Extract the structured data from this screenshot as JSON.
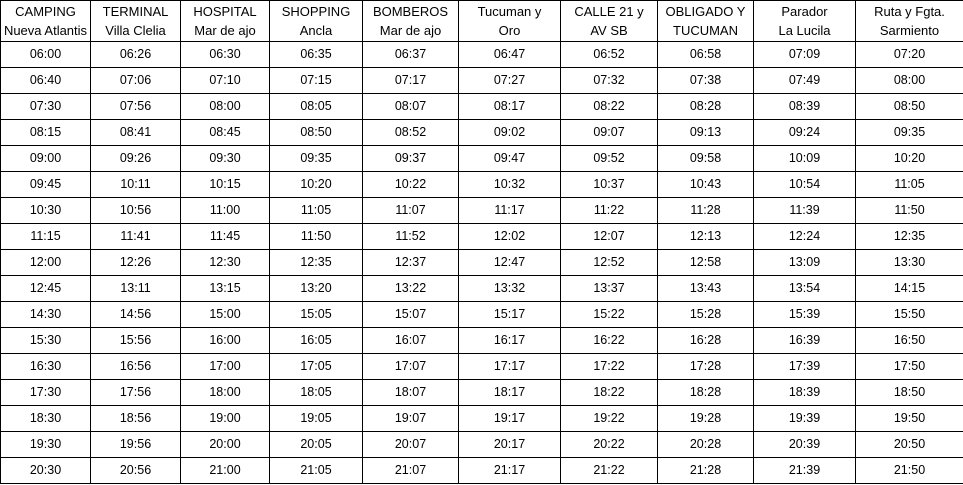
{
  "headers": [
    {
      "line1": "CAMPING",
      "line2": "Nueva Atlantis"
    },
    {
      "line1": "TERMINAL",
      "line2": "Villa Clelia"
    },
    {
      "line1": "HOSPITAL",
      "line2": "Mar de ajo"
    },
    {
      "line1": "SHOPPING",
      "line2": "Ancla"
    },
    {
      "line1": "BOMBEROS",
      "line2": "Mar de ajo"
    },
    {
      "line1": "Tucuman y",
      "line2": "Oro"
    },
    {
      "line1": "CALLE 21 y",
      "line2": "AV SB"
    },
    {
      "line1": "OBLIGADO Y",
      "line2": "TUCUMAN"
    },
    {
      "line1": "Parador",
      "line2": "La Lucila"
    },
    {
      "line1": "Ruta y Fgta.",
      "line2": "Sarmiento"
    }
  ],
  "rows": [
    [
      "06:00",
      "06:26",
      "06:30",
      "06:35",
      "06:37",
      "06:47",
      "06:52",
      "06:58",
      "07:09",
      "07:20"
    ],
    [
      "06:40",
      "07:06",
      "07:10",
      "07:15",
      "07:17",
      "07:27",
      "07:32",
      "07:38",
      "07:49",
      "08:00"
    ],
    [
      "07:30",
      "07:56",
      "08:00",
      "08:05",
      "08:07",
      "08:17",
      "08:22",
      "08:28",
      "08:39",
      "08:50"
    ],
    [
      "08:15",
      "08:41",
      "08:45",
      "08:50",
      "08:52",
      "09:02",
      "09:07",
      "09:13",
      "09:24",
      "09:35"
    ],
    [
      "09:00",
      "09:26",
      "09:30",
      "09:35",
      "09:37",
      "09:47",
      "09:52",
      "09:58",
      "10:09",
      "10:20"
    ],
    [
      "09:45",
      "10:11",
      "10:15",
      "10:20",
      "10:22",
      "10:32",
      "10:37",
      "10:43",
      "10:54",
      "11:05"
    ],
    [
      "10:30",
      "10:56",
      "11:00",
      "11:05",
      "11:07",
      "11:17",
      "11:22",
      "11:28",
      "11:39",
      "11:50"
    ],
    [
      "11:15",
      "11:41",
      "11:45",
      "11:50",
      "11:52",
      "12:02",
      "12:07",
      "12:13",
      "12:24",
      "12:35"
    ],
    [
      "12:00",
      "12:26",
      "12:30",
      "12:35",
      "12:37",
      "12:47",
      "12:52",
      "12:58",
      "13:09",
      "13:30"
    ],
    [
      "12:45",
      "13:11",
      "13:15",
      "13:20",
      "13:22",
      "13:32",
      "13:37",
      "13:43",
      "13:54",
      "14:15"
    ],
    [
      "14:30",
      "14:56",
      "15:00",
      "15:05",
      "15:07",
      "15:17",
      "15:22",
      "15:28",
      "15:39",
      "15:50"
    ],
    [
      "15:30",
      "15:56",
      "16:00",
      "16:05",
      "16:07",
      "16:17",
      "16:22",
      "16:28",
      "16:39",
      "16:50"
    ],
    [
      "16:30",
      "16:56",
      "17:00",
      "17:05",
      "17:07",
      "17:17",
      "17:22",
      "17:28",
      "17:39",
      "17:50"
    ],
    [
      "17:30",
      "17:56",
      "18:00",
      "18:05",
      "18:07",
      "18:17",
      "18:22",
      "18:28",
      "18:39",
      "18:50"
    ],
    [
      "18:30",
      "18:56",
      "19:00",
      "19:05",
      "19:07",
      "19:17",
      "19:22",
      "19:28",
      "19:39",
      "19:50"
    ],
    [
      "19:30",
      "19:56",
      "20:00",
      "20:05",
      "20:07",
      "20:17",
      "20:22",
      "20:28",
      "20:39",
      "20:50"
    ],
    [
      "20:30",
      "20:56",
      "21:00",
      "21:05",
      "21:07",
      "21:17",
      "21:22",
      "21:28",
      "21:39",
      "21:50"
    ]
  ]
}
